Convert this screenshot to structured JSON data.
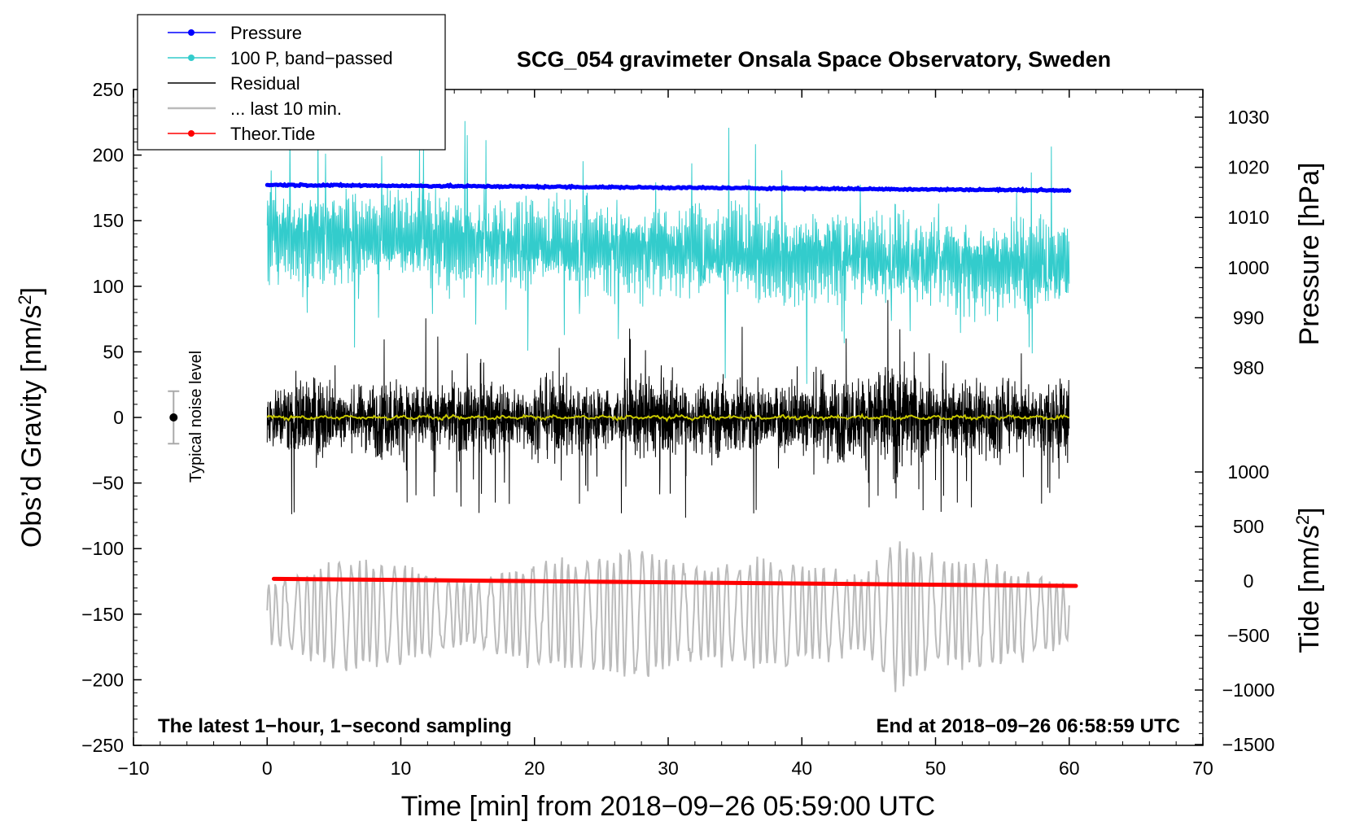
{
  "chart_data": {
    "type": "line",
    "title": "SCG_054 gravimeter Onsala Space Observatory, Sweden",
    "xlabel": "Time [min] from 2018−09−26 05:59:00 UTC",
    "ylabel_left": "Obs’d Gravity [nm/s",
    "ylabel_left_sup": "2",
    "ylabel_left_end": "]",
    "ylabel_pressure": "Pressure [hPa]",
    "ylabel_tide": "Tide [nm/s",
    "ylabel_tide_sup": "2",
    "ylabel_tide_end": "]",
    "xlim": [
      -10,
      70
    ],
    "ylim": [
      -250,
      250
    ],
    "x_ticks": [
      -10,
      0,
      10,
      20,
      30,
      40,
      50,
      60,
      70
    ],
    "x_tick_labels": [
      "−10",
      "0",
      "10",
      "20",
      "30",
      "40",
      "50",
      "60",
      "70"
    ],
    "y_ticks": [
      -250,
      -200,
      -150,
      -100,
      -50,
      0,
      50,
      100,
      150,
      200,
      250
    ],
    "y_tick_labels": [
      "−250",
      "−200",
      "−150",
      "−100",
      "−50",
      "0",
      "50",
      "100",
      "150",
      "200",
      "250"
    ],
    "pressure_ticks": [
      980,
      990,
      1000,
      1010,
      1020,
      1030
    ],
    "pressure_tick_labels": [
      "980",
      "990",
      "1000",
      "1010",
      "1020",
      "1030"
    ],
    "tide_ticks": [
      -1500,
      -1000,
      -500,
      0,
      500,
      1000
    ],
    "tide_tick_labels": [
      "−1500",
      "−1000",
      "−500",
      "0",
      "500",
      "1000"
    ],
    "legend": [
      {
        "label": "Pressure",
        "color": "#0000ff",
        "marker": true
      },
      {
        "label": "100 P, band−passed",
        "color": "#33cccc",
        "marker": true
      },
      {
        "label": "Residual",
        "color": "#000000",
        "marker": false
      },
      {
        "label": "... last 10 min.",
        "color": "#bbbbbb",
        "marker": false
      },
      {
        "label": "Theor.Tide",
        "color": "#ff0000",
        "marker": true
      }
    ],
    "annotations": {
      "bottom_left": "The latest 1−hour, 1−second sampling",
      "bottom_right": "End at 2018−09−26 06:58:59 UTC",
      "noise_label": "Typical noise level"
    },
    "noise_bar": {
      "x": -7,
      "center": 0,
      "half_range": 20
    },
    "series": [
      {
        "name": "Pressure",
        "axis": "pressure_hPa",
        "color": "#0000ff",
        "x_range": [
          0,
          60
        ],
        "start": 1016.5,
        "end": 1015.4
      },
      {
        "name": "100 P, band−passed",
        "axis": "gravity",
        "color": "#33cccc",
        "x_range": [
          0,
          60
        ],
        "mean_start": 140,
        "mean_end": 115,
        "spread": 30
      },
      {
        "name": "Residual",
        "axis": "gravity",
        "color": "#000000",
        "x_range": [
          0,
          60
        ],
        "mean": 0,
        "spread": 35
      },
      {
        "name": "Residual smoothed",
        "axis": "gravity",
        "color": "#cccc00",
        "x_range": [
          0,
          60
        ],
        "mean": 0
      },
      {
        "name": "... last 10 min.",
        "axis": "gravity",
        "color": "#bbbbbb",
        "x_range": [
          0,
          60
        ],
        "mean": -150,
        "spread": 35
      },
      {
        "name": "Theor.Tide",
        "axis": "tide",
        "color": "#ff0000",
        "x_range": [
          0.5,
          60.5
        ],
        "start": 20,
        "end": -45
      }
    ],
    "colors": {
      "pressure": "#0000ff",
      "bandpassed": "#33cccc",
      "residual": "#000000",
      "smoothed": "#c8c800",
      "last10": "#bbbbbb",
      "tide": "#ff0000",
      "noise_bar": "#aaaaaa"
    }
  }
}
